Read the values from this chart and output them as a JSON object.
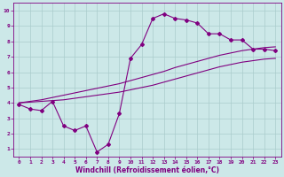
{
  "xlabel": "Windchill (Refroidissement éolien,°C)",
  "bg_color": "#cce8e8",
  "line_color": "#800080",
  "grid_color": "#aacccc",
  "x_data": [
    0,
    1,
    2,
    3,
    4,
    5,
    6,
    7,
    8,
    9,
    10,
    11,
    12,
    13,
    14,
    15,
    16,
    17,
    18,
    19,
    20,
    21,
    22,
    23
  ],
  "main_y": [
    3.9,
    3.6,
    3.5,
    4.1,
    2.5,
    2.2,
    2.5,
    0.8,
    1.3,
    3.3,
    6.9,
    7.8,
    9.5,
    9.8,
    9.5,
    9.4,
    9.2,
    8.5,
    8.5,
    8.1,
    8.1,
    7.5,
    7.5,
    7.4
  ],
  "upper_y": [
    4.0,
    4.1,
    4.2,
    4.35,
    4.5,
    4.65,
    4.8,
    4.95,
    5.1,
    5.25,
    5.45,
    5.65,
    5.85,
    6.05,
    6.3,
    6.5,
    6.7,
    6.9,
    7.1,
    7.25,
    7.4,
    7.5,
    7.6,
    7.65
  ],
  "lower_y": [
    4.0,
    4.05,
    4.1,
    4.15,
    4.2,
    4.3,
    4.4,
    4.5,
    4.6,
    4.7,
    4.85,
    5.0,
    5.15,
    5.35,
    5.55,
    5.75,
    5.95,
    6.15,
    6.35,
    6.5,
    6.65,
    6.75,
    6.85,
    6.9
  ],
  "xlim": [
    -0.5,
    23.5
  ],
  "ylim": [
    0.5,
    10.5
  ],
  "xticks": [
    0,
    1,
    2,
    3,
    4,
    5,
    6,
    7,
    8,
    9,
    10,
    11,
    12,
    13,
    14,
    15,
    16,
    17,
    18,
    19,
    20,
    21,
    22,
    23
  ],
  "yticks": [
    1,
    2,
    3,
    4,
    5,
    6,
    7,
    8,
    9,
    10
  ],
  "tick_fontsize": 4.5,
  "xlabel_fontsize": 5.5,
  "linewidth": 0.8,
  "markersize": 2.0
}
